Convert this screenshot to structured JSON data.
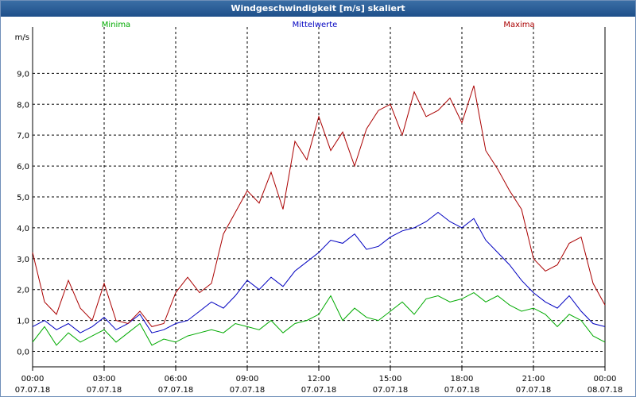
{
  "window": {
    "title": "Windgeschwindigkeit [m/s] skaliert"
  },
  "chart_data": {
    "type": "line",
    "title": "Windgeschwindigkeit [m/s] skaliert",
    "ylabel": "m/s",
    "xlabel": "",
    "ylim": [
      -0.5,
      10.5
    ],
    "xlim": [
      0,
      24
    ],
    "grid": true,
    "legend_placement": "top",
    "y_ticks": [
      "0,0",
      "1,0",
      "2,0",
      "3,0",
      "4,0",
      "5,0",
      "6,0",
      "7,0",
      "8,0",
      "9,0"
    ],
    "x_ticks": [
      {
        "time": "00:00",
        "date": "07.07.18"
      },
      {
        "time": "03:00",
        "date": "07.07.18"
      },
      {
        "time": "06:00",
        "date": "07.07.18"
      },
      {
        "time": "09:00",
        "date": "07.07.18"
      },
      {
        "time": "12:00",
        "date": "07.07.18"
      },
      {
        "time": "15:00",
        "date": "07.07.18"
      },
      {
        "time": "18:00",
        "date": "07.07.18"
      },
      {
        "time": "21:00",
        "date": "07.07.18"
      },
      {
        "time": "00:00",
        "date": "08.07.18"
      }
    ],
    "series": [
      {
        "name": "Minima",
        "color": "#00aa00",
        "x": [
          0,
          0.5,
          1,
          1.5,
          2,
          2.5,
          3,
          3.5,
          4,
          4.5,
          5,
          5.5,
          6,
          6.5,
          7,
          7.5,
          8,
          8.5,
          9,
          9.5,
          10,
          10.5,
          11,
          11.5,
          12,
          12.5,
          13,
          13.5,
          14,
          14.5,
          15,
          15.5,
          16,
          16.5,
          17,
          17.5,
          18,
          18.5,
          19,
          19.5,
          20,
          20.5,
          21,
          21.5,
          22,
          22.5,
          23,
          23.5,
          24
        ],
        "values": [
          0.3,
          0.8,
          0.2,
          0.6,
          0.3,
          0.5,
          0.7,
          0.3,
          0.6,
          0.9,
          0.2,
          0.4,
          0.3,
          0.5,
          0.6,
          0.7,
          0.6,
          0.9,
          0.8,
          0.7,
          1.0,
          0.6,
          0.9,
          1.0,
          1.2,
          1.8,
          1.0,
          1.4,
          1.1,
          1.0,
          1.3,
          1.6,
          1.2,
          1.7,
          1.8,
          1.6,
          1.7,
          1.9,
          1.6,
          1.8,
          1.5,
          1.3,
          1.4,
          1.2,
          0.8,
          1.2,
          1.0,
          0.5,
          0.3
        ]
      },
      {
        "name": "Mittelwerte",
        "color": "#0000c0",
        "x": [
          0,
          0.5,
          1,
          1.5,
          2,
          2.5,
          3,
          3.5,
          4,
          4.5,
          5,
          5.5,
          6,
          6.5,
          7,
          7.5,
          8,
          8.5,
          9,
          9.5,
          10,
          10.5,
          11,
          11.5,
          12,
          12.5,
          13,
          13.5,
          14,
          14.5,
          15,
          15.5,
          16,
          16.5,
          17,
          17.5,
          18,
          18.5,
          19,
          19.5,
          20,
          20.5,
          21,
          21.5,
          22,
          22.5,
          23,
          23.5,
          24
        ],
        "values": [
          0.8,
          1.0,
          0.7,
          0.9,
          0.6,
          0.8,
          1.1,
          0.7,
          0.9,
          1.2,
          0.6,
          0.7,
          0.9,
          1.0,
          1.3,
          1.6,
          1.4,
          1.8,
          2.3,
          2.0,
          2.4,
          2.1,
          2.6,
          2.9,
          3.2,
          3.6,
          3.5,
          3.8,
          3.3,
          3.4,
          3.7,
          3.9,
          4.0,
          4.2,
          4.5,
          4.2,
          4.0,
          4.3,
          3.6,
          3.2,
          2.8,
          2.3,
          1.9,
          1.6,
          1.4,
          1.8,
          1.3,
          0.9,
          0.8
        ]
      },
      {
        "name": "Maxima",
        "color": "#aa0000",
        "x": [
          0,
          0.5,
          1,
          1.5,
          2,
          2.5,
          3,
          3.5,
          4,
          4.5,
          5,
          5.5,
          6,
          6.5,
          7,
          7.5,
          8,
          8.5,
          9,
          9.5,
          10,
          10.5,
          11,
          11.5,
          12,
          12.5,
          13,
          13.5,
          14,
          14.5,
          15,
          15.5,
          16,
          16.5,
          17,
          17.5,
          18,
          18.5,
          19,
          19.5,
          20,
          20.5,
          21,
          21.5,
          22,
          22.5,
          23,
          23.5,
          24
        ],
        "values": [
          3.2,
          1.6,
          1.2,
          2.3,
          1.4,
          1.0,
          2.2,
          1.0,
          0.9,
          1.3,
          0.8,
          0.9,
          1.9,
          2.4,
          1.9,
          2.2,
          3.8,
          4.5,
          5.2,
          4.8,
          5.8,
          4.6,
          6.8,
          6.2,
          7.6,
          6.5,
          7.1,
          6.0,
          7.2,
          7.8,
          8.0,
          7.0,
          8.4,
          7.6,
          7.8,
          8.2,
          7.4,
          8.6,
          6.5,
          5.9,
          5.2,
          4.6,
          3.0,
          2.6,
          2.8,
          3.5,
          3.7,
          2.2,
          1.5
        ]
      }
    ]
  }
}
